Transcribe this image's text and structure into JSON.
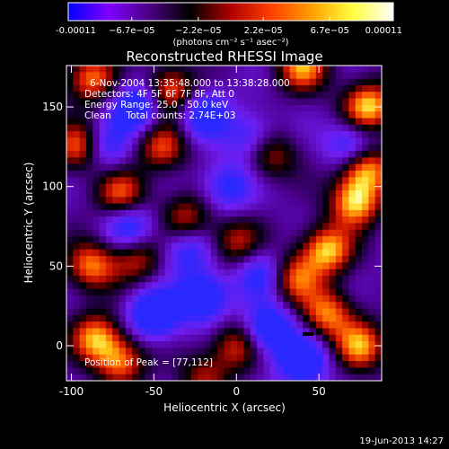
{
  "chart_data": {
    "type": "heatmap",
    "title": "Reconstructed RHESSI Image",
    "xlabel": "Heliocentric X (arcsec)",
    "ylabel": "Heliocentric Y (arcsec)",
    "xlim": [
      -103,
      88
    ],
    "ylim": [
      -22,
      176
    ],
    "x_ticks": [
      -100,
      -50,
      0,
      50
    ],
    "y_ticks": [
      0,
      50,
      100,
      150
    ],
    "colorbar": {
      "min": -0.00011,
      "max": 0.00011,
      "tick_values": [
        -0.00011,
        -6.7e-05,
        -2.2e-05,
        2.2e-05,
        6.7e-05,
        0.00011
      ],
      "tick_labels": [
        "-0.00011",
        "−6.7e−05",
        "−2.2e−05",
        "2.2e−05",
        "6.7e−05",
        "0.00011"
      ],
      "unit_label": "(photons cm⁻² s⁻¹ asec⁻²)",
      "colors": [
        "#0000ff",
        "#7f00ff",
        "#4b0082",
        "#000000",
        "#b00000",
        "#ff4000",
        "#ffa000",
        "#ffff40",
        "#ffffff"
      ]
    },
    "annotations": [
      "6-Nov-2004 13:35:48.000 to 13:38:28.000",
      "Detectors: 4F 5F 6F 7F 8F, Att 0",
      "Energy Range: 25.0 - 50.0 keV",
      "Clean     Total counts: 2.74E+03"
    ],
    "peak_label": "Position of Peak = [77,112]",
    "peak_position": [
      77,
      112
    ],
    "bright_regions": [
      {
        "x": 80,
        "y": 150,
        "level": 1.0
      },
      {
        "x": 78,
        "y": 112,
        "level": 1.0
      },
      {
        "x": 72,
        "y": 90,
        "level": 0.95
      },
      {
        "x": 55,
        "y": 60,
        "level": 0.95
      },
      {
        "x": 35,
        "y": 42,
        "level": 0.75
      },
      {
        "x": 55,
        "y": 20,
        "level": 0.8
      },
      {
        "x": 75,
        "y": 0,
        "level": 0.85
      },
      {
        "x": 40,
        "y": 175,
        "level": 0.85
      },
      {
        "x": -40,
        "y": 160,
        "level": 0.85
      },
      {
        "x": -88,
        "y": 168,
        "level": 0.8
      },
      {
        "x": -95,
        "y": 125,
        "level": 0.85
      },
      {
        "x": -70,
        "y": 95,
        "level": 0.75
      },
      {
        "x": -88,
        "y": 50,
        "level": 0.8
      },
      {
        "x": -60,
        "y": 55,
        "level": 0.6
      },
      {
        "x": -85,
        "y": 5,
        "level": 0.85
      },
      {
        "x": -70,
        "y": -10,
        "level": 0.75
      },
      {
        "x": -45,
        "y": 125,
        "level": 0.7
      },
      {
        "x": 0,
        "y": 65,
        "level": 0.6
      },
      {
        "x": 20,
        "y": 120,
        "level": 0.65
      },
      {
        "x": -30,
        "y": 80,
        "level": 0.6
      },
      {
        "x": 0,
        "y": 0,
        "level": 0.65
      },
      {
        "x": -20,
        "y": -20,
        "level": 0.5
      }
    ],
    "dark_regions": [
      {
        "x": -60,
        "y": 150,
        "level": -0.85
      },
      {
        "x": -20,
        "y": 145,
        "level": -0.7
      },
      {
        "x": -50,
        "y": 20,
        "level": -0.9
      },
      {
        "x": -20,
        "y": 30,
        "level": -0.85
      },
      {
        "x": 20,
        "y": 10,
        "level": -0.85
      },
      {
        "x": 40,
        "y": -10,
        "level": -0.8
      },
      {
        "x": -5,
        "y": 100,
        "level": -0.6
      },
      {
        "x": 10,
        "y": 130,
        "level": -0.55
      },
      {
        "x": 70,
        "y": 125,
        "level": -0.7
      },
      {
        "x": -80,
        "y": 125,
        "level": -0.6
      },
      {
        "x": -65,
        "y": 75,
        "level": -0.65
      },
      {
        "x": -30,
        "y": 60,
        "level": -0.55
      },
      {
        "x": 15,
        "y": 45,
        "level": -0.6
      }
    ],
    "grid": false
  },
  "footer": {
    "date_stamp": "19-Jun-2013 14:27"
  }
}
